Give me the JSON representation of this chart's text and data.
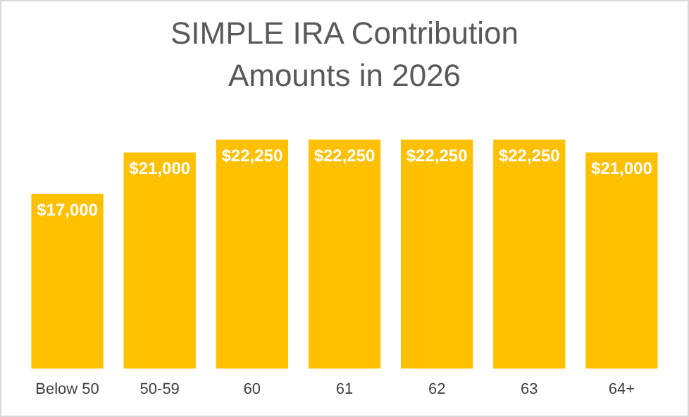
{
  "chart_data": {
    "type": "bar",
    "title": "SIMPLE IRA Contribution Amounts in 2026",
    "categories": [
      "Below 50",
      "50-59",
      "60",
      "61",
      "62",
      "63",
      "64+"
    ],
    "values": [
      17000,
      21000,
      22250,
      22250,
      22250,
      22250,
      21000
    ],
    "value_labels": [
      "$17,000",
      "$21,000",
      "$22,250",
      "$22,250",
      "$22,250",
      "$22,250",
      "$21,000"
    ],
    "color": "#ffc000",
    "grid": false,
    "legend": false
  }
}
